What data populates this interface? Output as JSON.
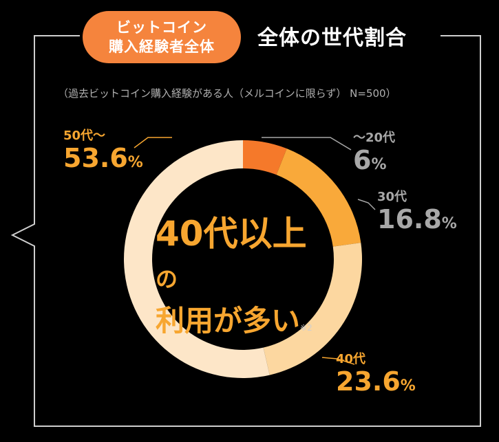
{
  "badge": {
    "line1": "ビットコイン",
    "line2": "購入経験者全体"
  },
  "title": "全体の世代割合",
  "note": "（過去ビットコイン購入経験がある人（メルコインに限らず） N=500）",
  "center": {
    "line1_a": "40代以上",
    "line1_b": "の",
    "line2": "利用が多い",
    "footnote": "※2"
  },
  "colors": {
    "background": "#000000",
    "accent": "#f7a630",
    "badge": "#f5843d",
    "gray_label": "#a8a8a8"
  },
  "chart_data": {
    "type": "pie",
    "categories": [
      "〜20代",
      "30代",
      "40代",
      "50代〜"
    ],
    "values": [
      6,
      16.8,
      23.6,
      53.6
    ],
    "unit": "%",
    "colors": [
      "#f5792a",
      "#f9a93a",
      "#fcd7a0",
      "#fde6c8"
    ],
    "label_colors": [
      "#a8a8a8",
      "#a8a8a8",
      "#f7a630",
      "#f7a630"
    ],
    "value_labels": [
      "6",
      "16.8",
      "23.6",
      "53.6"
    ]
  }
}
